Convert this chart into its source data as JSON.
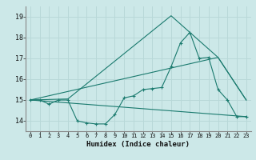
{
  "xlabel": "Humidex (Indice chaleur)",
  "bg_color": "#cce8e8",
  "grid_color": "#b8d8d8",
  "line_color": "#1a7a6e",
  "xlim": [
    -0.5,
    23.5
  ],
  "ylim": [
    13.5,
    19.5
  ],
  "xticks": [
    0,
    1,
    2,
    3,
    4,
    5,
    6,
    7,
    8,
    9,
    10,
    11,
    12,
    13,
    14,
    15,
    16,
    17,
    18,
    19,
    20,
    21,
    22,
    23
  ],
  "yticks": [
    14,
    15,
    16,
    17,
    18,
    19
  ],
  "curve1_x": [
    0,
    1,
    2,
    3,
    4,
    5,
    6,
    7,
    8,
    9,
    10,
    11,
    12,
    13,
    14,
    15,
    16,
    17,
    18,
    19,
    20,
    21,
    22,
    23
  ],
  "curve1_y": [
    15.0,
    15.0,
    14.8,
    15.0,
    15.0,
    14.0,
    13.9,
    13.85,
    13.85,
    14.3,
    15.1,
    15.2,
    15.5,
    15.55,
    15.6,
    16.6,
    17.75,
    18.25,
    17.0,
    17.05,
    15.5,
    15.0,
    14.2,
    14.2
  ],
  "curve2_x": [
    0,
    4,
    15,
    20,
    23
  ],
  "curve2_y": [
    15.0,
    15.05,
    19.05,
    17.05,
    15.0
  ],
  "curve3_x": [
    0,
    23
  ],
  "curve3_y": [
    15.0,
    14.2
  ],
  "curve4_x": [
    0,
    20,
    23
  ],
  "curve4_y": [
    15.0,
    17.05,
    15.0
  ]
}
